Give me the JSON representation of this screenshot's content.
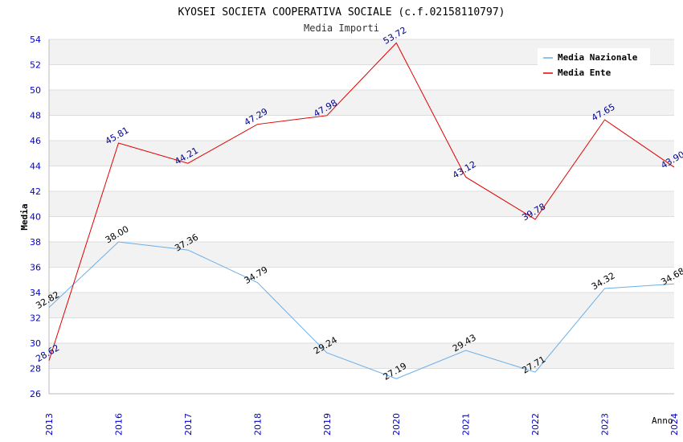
{
  "chart_data": {
    "type": "line",
    "title": "KYOSEI SOCIETA COOPERATIVA SOCIALE (c.f.02158110797)",
    "subtitle": "Media Importi",
    "xlabel": "Anno",
    "ylabel": "Media",
    "categories": [
      "2013",
      "2016",
      "2017",
      "2018",
      "2019",
      "2020",
      "2021",
      "2022",
      "2023",
      "2024"
    ],
    "ylim": [
      26,
      54
    ],
    "yticks": [
      26,
      28,
      30,
      32,
      34,
      36,
      38,
      40,
      42,
      44,
      46,
      48,
      50,
      52,
      54
    ],
    "grid": true,
    "legend_position": "top-right",
    "series": [
      {
        "name": "Media Nazionale",
        "color": "#6aaee8",
        "label_color": "#000000",
        "values": [
          32.82,
          38.0,
          37.36,
          34.79,
          29.24,
          27.19,
          29.43,
          27.71,
          34.32,
          34.68
        ],
        "labels": [
          "32.82",
          "38.00",
          "37.36",
          "34.79",
          "29.24",
          "27.19",
          "29.43",
          "27.71",
          "34.32",
          "34.68"
        ]
      },
      {
        "name": "Media Ente",
        "color": "#e00000",
        "label_color": "#00008b",
        "values": [
          28.62,
          45.81,
          44.21,
          47.29,
          47.98,
          53.72,
          43.12,
          39.78,
          47.65,
          43.9
        ],
        "labels": [
          "28.62",
          "45.81",
          "44.21",
          "47.29",
          "47.98",
          "53.72",
          "43.12",
          "39.78",
          "47.65",
          "43.90"
        ]
      }
    ]
  }
}
